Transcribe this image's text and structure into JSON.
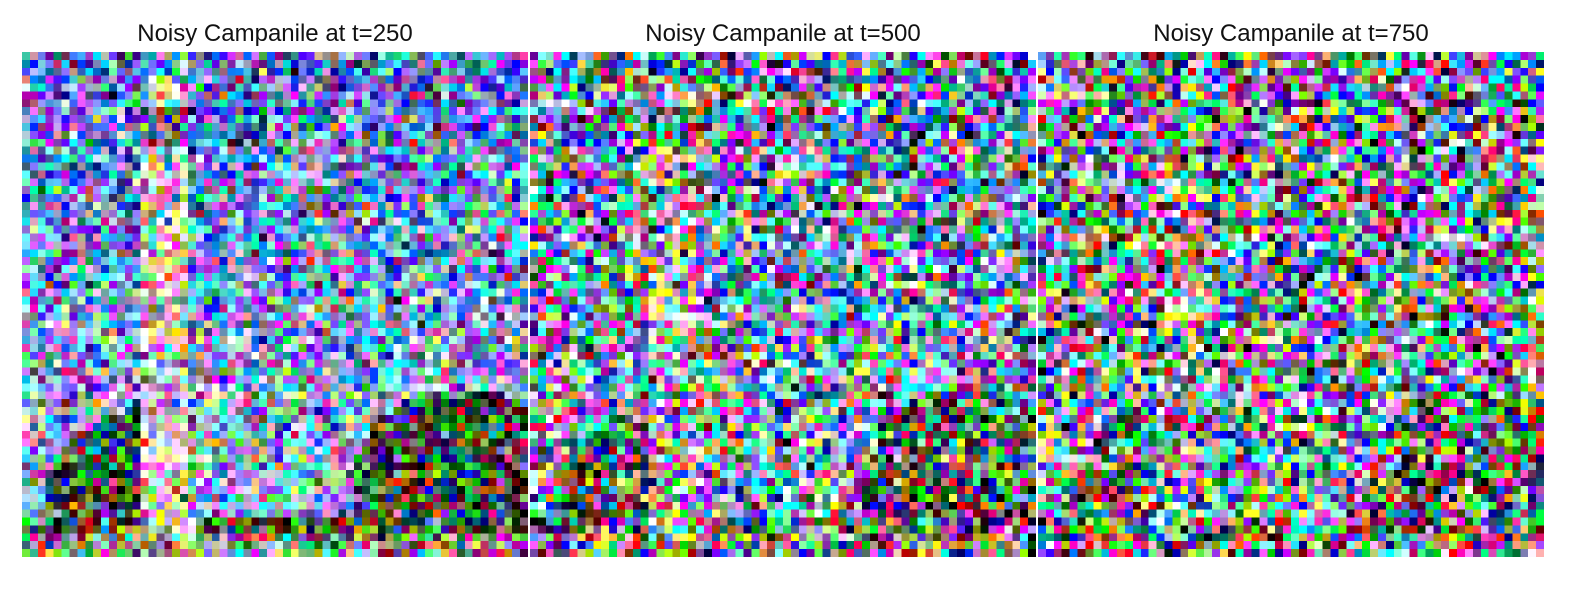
{
  "panels": [
    {
      "title": "Noisy Campanile at t=250",
      "timestep": 250
    },
    {
      "title": "Noisy Campanile at t=500",
      "timestep": 500
    },
    {
      "title": "Noisy Campanile at t=750",
      "timestep": 750
    }
  ]
}
